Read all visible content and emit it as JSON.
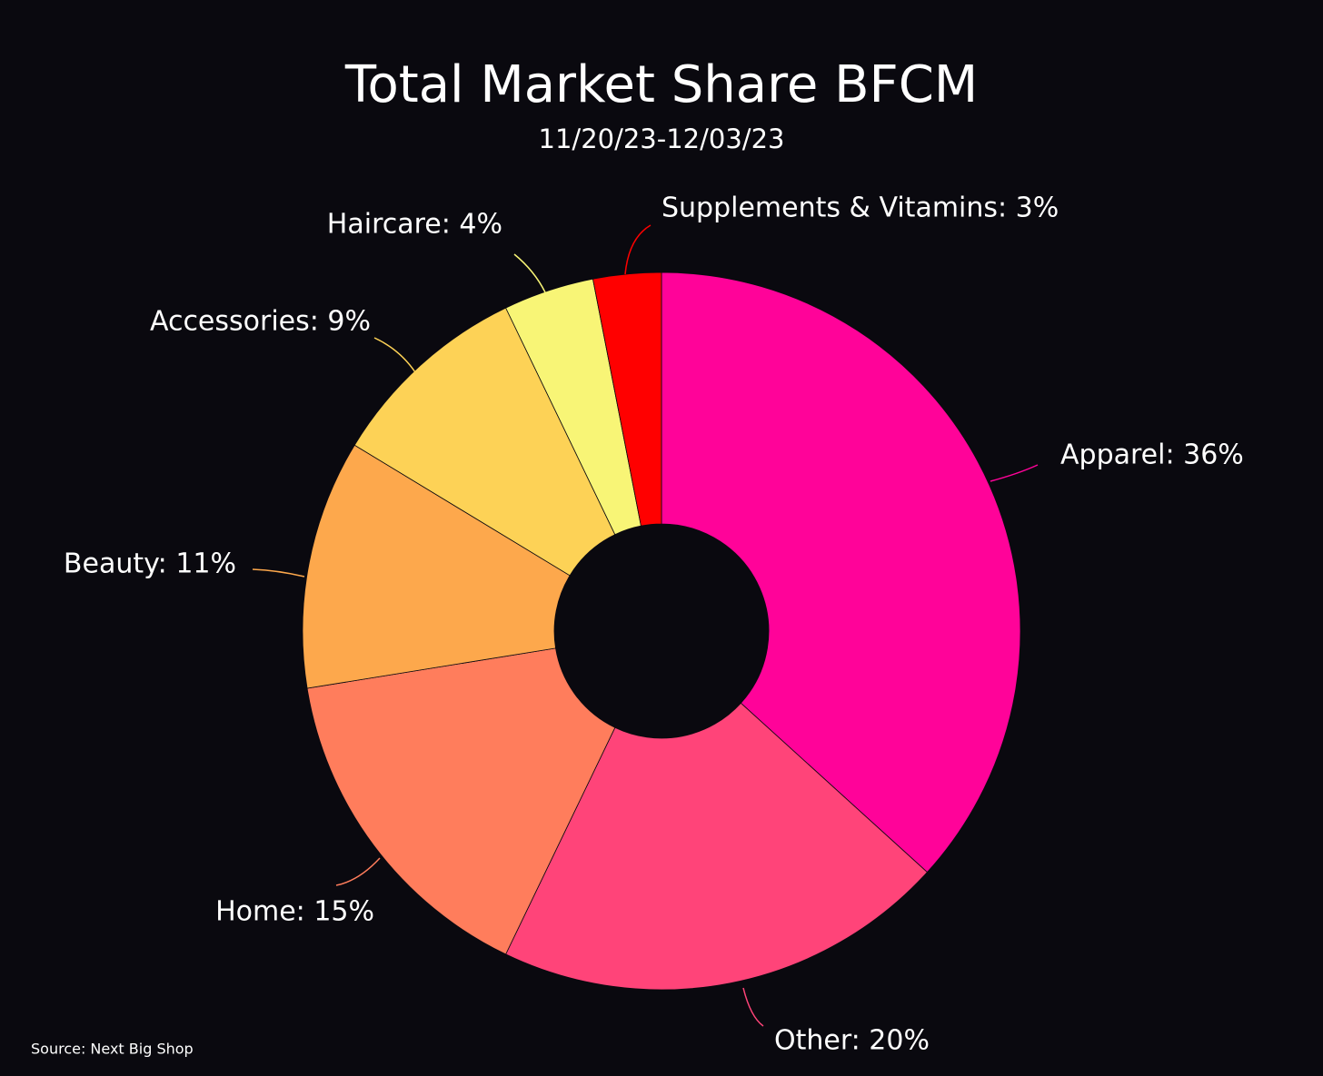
{
  "chart_data": {
    "type": "donut",
    "title": "Total Market Share BFCM",
    "subtitle": "11/20/23-12/03/23",
    "source": "Source: Next Big Shop",
    "values": [
      36,
      20,
      15,
      11,
      9,
      4,
      3
    ],
    "value_labels": [
      "Apparel: 36%",
      "Other: 20%",
      "Home: 15%",
      "Beauty: 11%",
      "Accessories: 9%",
      "Haircare: 4%",
      "Supplements & Vitamins: 3%"
    ],
    "colors": [
      "#ff0399",
      "#ff4479",
      "#ff7d5c",
      "#fda84c",
      "#fdd256",
      "#f8f576",
      "#ff0000"
    ]
  }
}
